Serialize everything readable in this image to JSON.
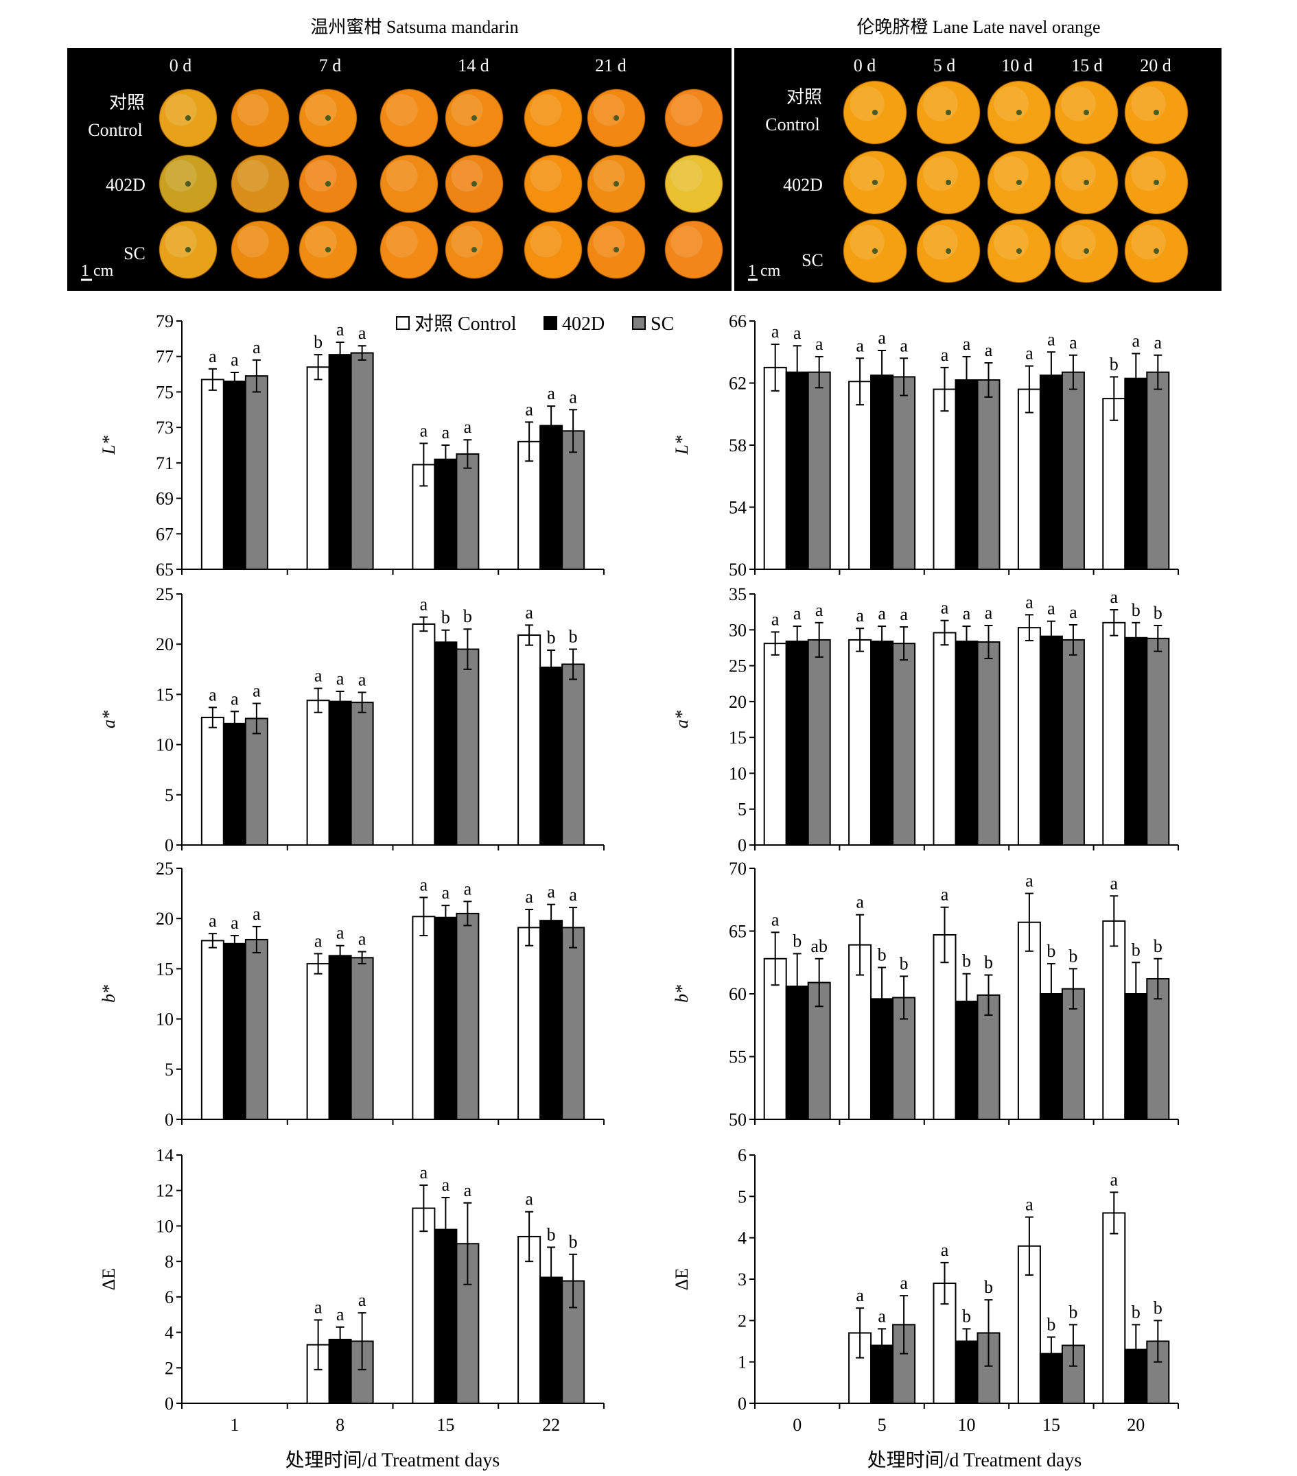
{
  "photos": {
    "left": {
      "title": "温州蜜柑 Satsuma mandarin",
      "day_labels": [
        "0 d",
        "7 d",
        "14 d",
        "21 d"
      ],
      "row_labels": [
        [
          "对照",
          "Control"
        ],
        [
          "402D"
        ],
        [
          "SC"
        ]
      ],
      "scale_label": "1 cm",
      "fruits_per_row": 8,
      "colors": [
        "#e8a21a",
        "#ec8a10",
        "#f08c12",
        "#f28a14",
        "#f08a12",
        "#f4900e",
        "#f28812",
        "#f2861a"
      ],
      "colors_402d": [
        "#c9a020",
        "#d9901a",
        "#ee8414",
        "#ef8a14",
        "#ee8414",
        "#f4900e",
        "#f08c12",
        "#e8c030"
      ]
    },
    "right": {
      "title": "伦晚脐橙 Lane Late navel orange",
      "day_labels": [
        "0 d",
        "5 d",
        "10 d",
        "15 d",
        "20 d"
      ],
      "row_labels": [
        [
          "对照",
          "Control"
        ],
        [
          "402D"
        ],
        [
          "SC"
        ]
      ],
      "scale_label": "1 cm",
      "fruits_per_row": 5,
      "colors": [
        "#f4a010",
        "#f4a012",
        "#f4a214",
        "#f4a012",
        "#f49e10"
      ]
    }
  },
  "legend": {
    "items": [
      {
        "label": "对照 Control",
        "color": "#ffffff"
      },
      {
        "label": "402D",
        "color": "#000000"
      },
      {
        "label": "SC",
        "color": "#808080"
      }
    ]
  },
  "xaxis_title": "处理时间/d Treatment days",
  "chart_data": [
    {
      "id": "left-L",
      "type": "bar",
      "ylabel": "L*",
      "ylim": [
        65,
        79
      ],
      "yticks": [
        65,
        67,
        69,
        71,
        73,
        75,
        77,
        79
      ],
      "categories": [
        "1",
        "8",
        "15",
        "22"
      ],
      "show_xticklabels": false,
      "series": [
        {
          "name": "对照 Control",
          "values": [
            75.7,
            76.4,
            70.9,
            72.2
          ],
          "err": [
            0.6,
            0.7,
            1.2,
            1.1
          ],
          "letters": [
            "a",
            "b",
            "a",
            "a"
          ]
        },
        {
          "name": "402D",
          "values": [
            75.6,
            77.1,
            71.2,
            73.1
          ],
          "err": [
            0.5,
            0.7,
            0.8,
            1.1
          ],
          "letters": [
            "a",
            "a",
            "a",
            "a"
          ]
        },
        {
          "name": "SC",
          "values": [
            75.9,
            77.2,
            71.5,
            72.8
          ],
          "err": [
            0.9,
            0.4,
            0.8,
            1.2
          ],
          "letters": [
            "a",
            "a",
            "a",
            "a"
          ]
        }
      ]
    },
    {
      "id": "right-L",
      "type": "bar",
      "ylabel": "L*",
      "ylim": [
        50,
        66
      ],
      "yticks": [
        50,
        54,
        58,
        62,
        66
      ],
      "categories": [
        "0",
        "5",
        "10",
        "15",
        "20"
      ],
      "show_xticklabels": false,
      "series": [
        {
          "name": "对照 Control",
          "values": [
            63.0,
            62.1,
            61.6,
            61.6,
            61.0
          ],
          "err": [
            1.5,
            1.5,
            1.4,
            1.5,
            1.4
          ],
          "letters": [
            "a",
            "a",
            "a",
            "a",
            "b"
          ]
        },
        {
          "name": "402D",
          "values": [
            62.7,
            62.5,
            62.2,
            62.5,
            62.3
          ],
          "err": [
            1.7,
            1.6,
            1.5,
            1.5,
            1.6
          ],
          "letters": [
            "a",
            "a",
            "a",
            "a",
            "a"
          ]
        },
        {
          "name": "SC",
          "values": [
            62.7,
            62.4,
            62.2,
            62.7,
            62.7
          ],
          "err": [
            1.0,
            1.2,
            1.1,
            1.1,
            1.1
          ],
          "letters": [
            "a",
            "a",
            "a",
            "a",
            "a"
          ]
        }
      ]
    },
    {
      "id": "left-a",
      "type": "bar",
      "ylabel": "a*",
      "ylim": [
        0,
        25
      ],
      "yticks": [
        0,
        5,
        10,
        15,
        20,
        25
      ],
      "categories": [
        "1",
        "8",
        "15",
        "22"
      ],
      "show_xticklabels": false,
      "series": [
        {
          "name": "对照 Control",
          "values": [
            12.7,
            14.4,
            22.0,
            20.9
          ],
          "err": [
            1.0,
            1.2,
            0.7,
            1.0
          ],
          "letters": [
            "a",
            "a",
            "a",
            "a"
          ]
        },
        {
          "name": "402D",
          "values": [
            12.1,
            14.3,
            20.2,
            17.7
          ],
          "err": [
            1.2,
            1.0,
            1.2,
            1.7
          ],
          "letters": [
            "a",
            "a",
            "b",
            "b"
          ]
        },
        {
          "name": "SC",
          "values": [
            12.6,
            14.2,
            19.5,
            18.0
          ],
          "err": [
            1.5,
            1.0,
            2.0,
            1.5
          ],
          "letters": [
            "a",
            "a",
            "b",
            "b"
          ]
        }
      ]
    },
    {
      "id": "right-a",
      "type": "bar",
      "ylabel": "a*",
      "ylim": [
        0,
        35
      ],
      "yticks": [
        0,
        5,
        10,
        15,
        20,
        25,
        30,
        35
      ],
      "categories": [
        "0",
        "5",
        "10",
        "15",
        "20"
      ],
      "show_xticklabels": false,
      "series": [
        {
          "name": "对照 Control",
          "values": [
            28.1,
            28.6,
            29.6,
            30.3,
            31.0
          ],
          "err": [
            1.6,
            1.6,
            1.7,
            1.8,
            1.8
          ],
          "letters": [
            "a",
            "a",
            "a",
            "a",
            "a"
          ]
        },
        {
          "name": "402D",
          "values": [
            28.4,
            28.4,
            28.4,
            29.1,
            28.9
          ],
          "err": [
            2.1,
            2.1,
            2.1,
            2.1,
            2.1
          ],
          "letters": [
            "a",
            "a",
            "a",
            "a",
            "b"
          ]
        },
        {
          "name": "SC",
          "values": [
            28.6,
            28.1,
            28.3,
            28.6,
            28.8
          ],
          "err": [
            2.4,
            2.3,
            2.3,
            2.1,
            1.8
          ],
          "letters": [
            "a",
            "a",
            "a",
            "a",
            "b"
          ]
        }
      ]
    },
    {
      "id": "left-b",
      "type": "bar",
      "ylabel": "b*",
      "ylim": [
        0,
        25
      ],
      "yticks": [
        0,
        5,
        10,
        15,
        20,
        25
      ],
      "categories": [
        "1",
        "8",
        "15",
        "22"
      ],
      "show_xticklabels": false,
      "series": [
        {
          "name": "对照 Control",
          "values": [
            17.8,
            15.5,
            20.2,
            19.1
          ],
          "err": [
            0.7,
            1.0,
            1.9,
            1.8
          ],
          "letters": [
            "a",
            "a",
            "a",
            "a"
          ]
        },
        {
          "name": "402D",
          "values": [
            17.5,
            16.3,
            20.1,
            19.8
          ],
          "err": [
            0.8,
            1.0,
            1.2,
            1.6
          ],
          "letters": [
            "a",
            "a",
            "a",
            "a"
          ]
        },
        {
          "name": "SC",
          "values": [
            17.9,
            16.1,
            20.5,
            19.1
          ],
          "err": [
            1.3,
            0.6,
            1.2,
            2.0
          ],
          "letters": [
            "a",
            "a",
            "a",
            "a"
          ]
        }
      ]
    },
    {
      "id": "right-b",
      "type": "bar",
      "ylabel": "b*",
      "ylim": [
        50,
        70
      ],
      "yticks": [
        50,
        55,
        60,
        65,
        70
      ],
      "categories": [
        "0",
        "5",
        "10",
        "15",
        "20"
      ],
      "show_xticklabels": false,
      "series": [
        {
          "name": "对照 Control",
          "values": [
            62.8,
            63.9,
            64.7,
            65.7,
            65.8
          ],
          "err": [
            2.1,
            2.4,
            2.2,
            2.3,
            2.0
          ],
          "letters": [
            "a",
            "a",
            "a",
            "a",
            "a"
          ]
        },
        {
          "name": "402D",
          "values": [
            60.6,
            59.6,
            59.4,
            60.0,
            60.0
          ],
          "err": [
            2.6,
            2.5,
            2.2,
            2.4,
            2.5
          ],
          "letters": [
            "b",
            "b",
            "b",
            "b",
            "b"
          ]
        },
        {
          "name": "SC",
          "values": [
            60.9,
            59.7,
            59.9,
            60.4,
            61.2
          ],
          "err": [
            1.9,
            1.7,
            1.6,
            1.6,
            1.6
          ],
          "letters": [
            "ab",
            "b",
            "b",
            "b",
            "b"
          ]
        }
      ]
    },
    {
      "id": "left-dE",
      "type": "bar",
      "ylabel": "ΔE",
      "ylim": [
        0,
        14
      ],
      "yticks": [
        0,
        2,
        4,
        6,
        8,
        10,
        12,
        14
      ],
      "categories": [
        "1",
        "8",
        "15",
        "22"
      ],
      "show_xticklabels": true,
      "series": [
        {
          "name": "对照 Control",
          "values": [
            0,
            3.3,
            11.0,
            9.4
          ],
          "err": [
            0,
            1.4,
            1.3,
            1.4
          ],
          "letters": [
            "",
            "a",
            "a",
            "a"
          ]
        },
        {
          "name": "402D",
          "values": [
            0,
            3.6,
            9.8,
            7.1
          ],
          "err": [
            0,
            0.7,
            1.8,
            1.7
          ],
          "letters": [
            "",
            "a",
            "a",
            "b"
          ]
        },
        {
          "name": "SC",
          "values": [
            0,
            3.5,
            9.0,
            6.9
          ],
          "err": [
            0,
            1.6,
            2.3,
            1.5
          ],
          "letters": [
            "",
            "a",
            "a",
            "b"
          ]
        }
      ]
    },
    {
      "id": "right-dE",
      "type": "bar",
      "ylabel": "ΔE",
      "ylim": [
        0,
        6
      ],
      "yticks": [
        0,
        1,
        2,
        3,
        4,
        5,
        6
      ],
      "categories": [
        "0",
        "5",
        "10",
        "15",
        "20"
      ],
      "show_xticklabels": true,
      "series": [
        {
          "name": "对照 Control",
          "values": [
            0,
            1.7,
            2.9,
            3.8,
            4.6
          ],
          "err": [
            0,
            0.6,
            0.5,
            0.7,
            0.5
          ],
          "letters": [
            "",
            "a",
            "a",
            "a",
            "a"
          ]
        },
        {
          "name": "402D",
          "values": [
            0,
            1.4,
            1.5,
            1.2,
            1.3
          ],
          "err": [
            0,
            0.4,
            0.3,
            0.4,
            0.6
          ],
          "letters": [
            "",
            "a",
            "b",
            "b",
            "b"
          ]
        },
        {
          "name": "SC",
          "values": [
            0,
            1.9,
            1.7,
            1.4,
            1.5
          ],
          "err": [
            0,
            0.7,
            0.8,
            0.5,
            0.5
          ],
          "letters": [
            "",
            "a",
            "b",
            "b",
            "b"
          ]
        }
      ]
    }
  ]
}
